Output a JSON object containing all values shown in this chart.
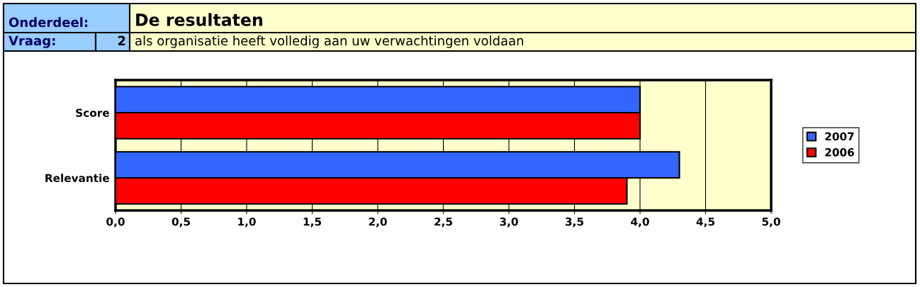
{
  "chart_data": {
    "type": "bar",
    "orientation": "horizontal",
    "title": "De resultaten",
    "subtitle": "als organisatie heeft volledig aan uw verwachtingen voldaan",
    "annotations": [
      "Onderdeel:",
      "Vraag:",
      "2"
    ],
    "categories": [
      "Score",
      "Relevantie"
    ],
    "series": [
      {
        "name": "2007",
        "color": "#3366ff",
        "values": [
          4.0,
          4.3
        ]
      },
      {
        "name": "2006",
        "color": "#ff0000",
        "values": [
          4.0,
          3.9
        ]
      }
    ],
    "xlim": [
      0,
      5
    ],
    "xticks": [
      {
        "value": 0,
        "label": "0,0"
      },
      {
        "value": 0.5,
        "label": "0,5"
      },
      {
        "value": 1,
        "label": "1,0"
      },
      {
        "value": 1.5,
        "label": "1,5"
      },
      {
        "value": 2,
        "label": "2,0"
      },
      {
        "value": 2.5,
        "label": "2,5"
      },
      {
        "value": 3,
        "label": "3,0"
      },
      {
        "value": 3.5,
        "label": "3,5"
      },
      {
        "value": 4,
        "label": "4,0"
      },
      {
        "value": 4.5,
        "label": "4,5"
      },
      {
        "value": 5,
        "label": "5,0"
      }
    ],
    "bands": [
      {
        "axis": "x",
        "from": 0,
        "to": 5,
        "color": "#ffffcc"
      }
    ],
    "grid": "x",
    "legend": "right"
  }
}
